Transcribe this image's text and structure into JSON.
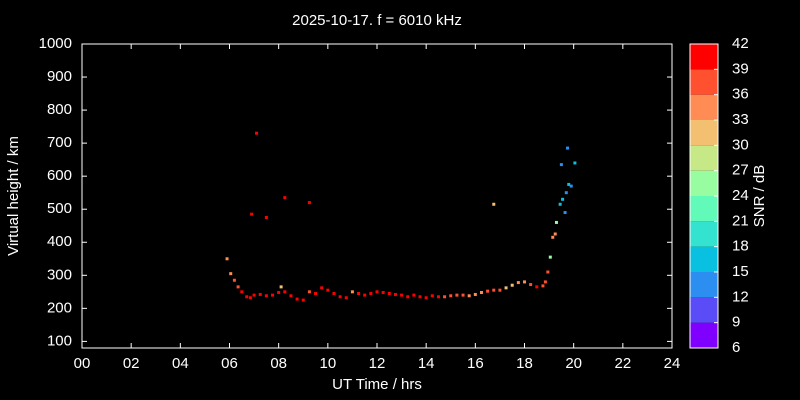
{
  "chart_data": {
    "type": "scatter",
    "title": "2025-10-17. f = 6010 kHz",
    "xlabel": "UT Time / hrs",
    "ylabel": "Virtual height / km",
    "x": [
      5.9,
      6.05,
      6.2,
      6.35,
      6.5,
      6.7,
      6.85,
      7.0,
      7.25,
      7.5,
      7.75,
      8.0,
      8.1,
      8.25,
      8.5,
      8.75,
      9.0,
      9.25,
      9.5,
      9.75,
      10.0,
      10.25,
      10.5,
      10.75,
      11.0,
      11.25,
      11.5,
      11.75,
      12.0,
      12.25,
      12.5,
      12.75,
      13.0,
      13.25,
      13.5,
      13.75,
      14.0,
      14.25,
      14.5,
      14.75,
      15.0,
      15.25,
      15.5,
      15.75,
      16.0,
      16.25,
      16.5,
      16.75,
      17.0,
      17.25,
      17.5,
      17.75,
      18.0,
      18.25,
      18.5,
      18.75,
      18.85,
      18.95,
      19.05,
      19.15,
      19.25,
      19.3,
      19.45,
      19.55,
      19.65,
      19.7,
      19.8,
      19.9,
      19.75,
      19.5,
      20.05,
      6.9,
      7.1,
      7.5,
      8.25,
      9.25,
      16.75
    ],
    "values": [
      350,
      305,
      285,
      265,
      250,
      235,
      232,
      240,
      242,
      238,
      240,
      248,
      265,
      250,
      238,
      228,
      225,
      250,
      245,
      262,
      255,
      245,
      235,
      232,
      250,
      245,
      240,
      245,
      250,
      248,
      245,
      242,
      240,
      235,
      240,
      235,
      232,
      238,
      235,
      235,
      238,
      240,
      240,
      238,
      242,
      248,
      252,
      255,
      255,
      262,
      270,
      278,
      280,
      272,
      265,
      268,
      280,
      310,
      355,
      415,
      425,
      460,
      515,
      530,
      490,
      550,
      575,
      570,
      685,
      635,
      640,
      485,
      730,
      475,
      535,
      520,
      515
    ],
    "snr": [
      33,
      33,
      36,
      36,
      39,
      39,
      39,
      39,
      39,
      39,
      39,
      39,
      30,
      39,
      39,
      39,
      39,
      36,
      39,
      39,
      39,
      39,
      39,
      39,
      33,
      39,
      39,
      39,
      39,
      39,
      39,
      39,
      39,
      39,
      39,
      39,
      39,
      39,
      39,
      36,
      36,
      36,
      36,
      33,
      33,
      33,
      36,
      36,
      36,
      30,
      30,
      33,
      33,
      36,
      39,
      36,
      36,
      36,
      24,
      33,
      33,
      24,
      15,
      15,
      12,
      12,
      15,
      12,
      12,
      12,
      15,
      39,
      39,
      39,
      39,
      39,
      30
    ],
    "xlim": [
      0,
      24
    ],
    "ylim": [
      80,
      1000
    ],
    "xticks": [
      {
        "value": 0,
        "label": "00"
      },
      {
        "value": 2,
        "label": "02"
      },
      {
        "value": 4,
        "label": "04"
      },
      {
        "value": 6,
        "label": "06"
      },
      {
        "value": 8,
        "label": "08"
      },
      {
        "value": 10,
        "label": "10"
      },
      {
        "value": 12,
        "label": "12"
      },
      {
        "value": 14,
        "label": "14"
      },
      {
        "value": 16,
        "label": "16"
      },
      {
        "value": 18,
        "label": "18"
      },
      {
        "value": 20,
        "label": "20"
      },
      {
        "value": 22,
        "label": "22"
      },
      {
        "value": 24,
        "label": "24"
      }
    ],
    "yticks": [
      100,
      200,
      300,
      400,
      500,
      600,
      700,
      800,
      900,
      1000
    ],
    "colorbar": {
      "label": "SNR / dB",
      "lim": [
        6,
        42
      ],
      "ticks": [
        6,
        9,
        12,
        15,
        18,
        21,
        24,
        27,
        30,
        33,
        36,
        39,
        42
      ],
      "colors": [
        "#8000ff",
        "#5a4df8",
        "#2c8ef0",
        "#0ac0e0",
        "#34e2d0",
        "#62fab8",
        "#98fda0",
        "#c6e886",
        "#f2c070",
        "#ff8c55",
        "#ff5030",
        "#ff0000"
      ]
    }
  }
}
